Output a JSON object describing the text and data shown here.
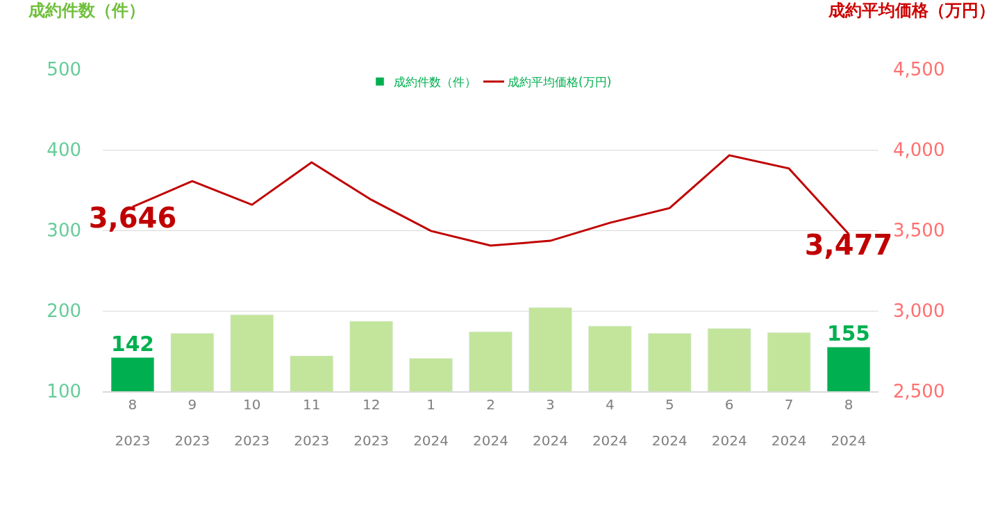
{
  "chart_data": {
    "type": "bar",
    "ylabel": "成約件数（件）",
    "y2label": "成約平均価格（万円）",
    "categories": [
      "8\n2023",
      "9\n2023",
      "10\n2023",
      "11\n2023",
      "12\n2023",
      "1\n2024",
      "2\n2024",
      "3\n2024",
      "4\n2024",
      "5\n2024",
      "6\n2024",
      "7\n2024",
      "8\n2024"
    ],
    "series": [
      {
        "name": "成約件数（件）",
        "color": "#c3e59b",
        "colors": [
          "#00b050",
          "#c3e59b",
          "#c3e59b",
          "#c3e59b",
          "#c3e59b",
          "#c3e59b",
          "#c3e59b",
          "#c3e59b",
          "#c3e59b",
          "#c3e59b",
          "#c3e59b",
          "#c3e59b",
          "#00b050"
        ],
        "values": [
          142,
          172,
          195,
          144,
          187,
          141,
          174,
          204,
          181,
          172,
          178,
          173,
          155
        ],
        "value_labels": [
          "142",
          null,
          null,
          null,
          null,
          null,
          null,
          null,
          null,
          null,
          null,
          null,
          "155"
        ]
      },
      {
        "name": "成約平均価格(万円)",
        "type": "line",
        "axis": "y2",
        "color": "#c00000",
        "values": [
          3646,
          3806,
          3659,
          3922,
          3690,
          3496,
          3405,
          3435,
          3547,
          3638,
          3966,
          3884,
          3477
        ],
        "value_labels": [
          "3,646",
          null,
          null,
          null,
          null,
          null,
          null,
          null,
          null,
          null,
          null,
          null,
          "3,477"
        ]
      }
    ],
    "ylim": [
      100,
      500
    ],
    "yticks": [
      100,
      200,
      300,
      400,
      500
    ],
    "y2lim": [
      2500,
      4500
    ],
    "y2ticks": [
      {
        "value": 2500,
        "label": "2,500"
      },
      {
        "value": 3000,
        "label": "3,000"
      },
      {
        "value": 3500,
        "label": "3,500"
      },
      {
        "value": 4000,
        "label": "4,000"
      },
      {
        "value": 4500,
        "label": "4,500"
      }
    ],
    "grid": "y",
    "legend": "top",
    "marker": "none",
    "line_style": "solid"
  }
}
